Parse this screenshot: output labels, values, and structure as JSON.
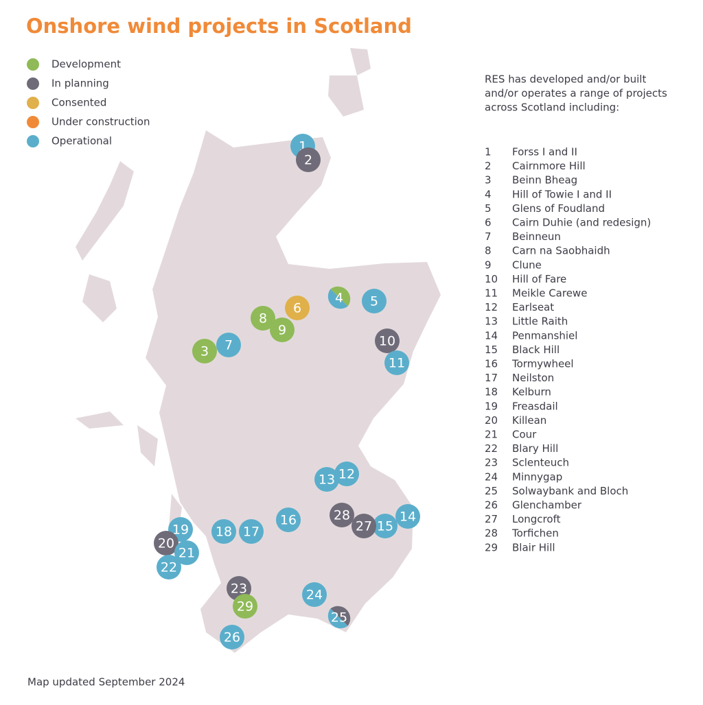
{
  "title": "Onshore wind projects in Scotland",
  "legend": [
    {
      "label": "Development",
      "color": "#8fba57"
    },
    {
      "label": "In planning",
      "color": "#6f6b78"
    },
    {
      "label": "Consented",
      "color": "#e0b04a"
    },
    {
      "label": "Under construction",
      "color": "#f08a38"
    },
    {
      "label": "Operational",
      "color": "#5aaecb"
    }
  ],
  "intro": [
    "RES has developed and/or built",
    "and/or operates a range of projects",
    "across Scotland including:"
  ],
  "projects": [
    {
      "number": "1",
      "name": "Forss I and II",
      "status": [
        "Operational"
      ]
    },
    {
      "number": "2",
      "name": "Cairnmore Hill",
      "status": [
        "In planning"
      ]
    },
    {
      "number": "3",
      "name": "Beinn Bheag",
      "status": [
        "Development"
      ]
    },
    {
      "number": "4",
      "name": "Hill of Towie I and II",
      "status": [
        "Operational",
        "Development"
      ]
    },
    {
      "number": "5",
      "name": "Glens of Foudland",
      "status": [
        "Operational"
      ]
    },
    {
      "number": "6",
      "name": "Cairn Duhie (and redesign)",
      "status": [
        "Consented"
      ]
    },
    {
      "number": "7",
      "name": "Beinneun",
      "status": [
        "Operational"
      ]
    },
    {
      "number": "8",
      "name": "Carn na Saobhaidh",
      "status": [
        "Development"
      ]
    },
    {
      "number": "9",
      "name": "Clune",
      "status": [
        "Development"
      ]
    },
    {
      "number": "10",
      "name": "Hill of Fare",
      "status": [
        "In planning"
      ]
    },
    {
      "number": "11",
      "name": "Meikle Carewe",
      "status": [
        "Operational"
      ]
    },
    {
      "number": "12",
      "name": "Earlseat",
      "status": [
        "Operational"
      ]
    },
    {
      "number": "13",
      "name": "Little Raith",
      "status": [
        "Operational"
      ]
    },
    {
      "number": "14",
      "name": "Penmanshiel",
      "status": [
        "Operational"
      ]
    },
    {
      "number": "15",
      "name": "Black Hill",
      "status": [
        "Operational"
      ]
    },
    {
      "number": "16",
      "name": "Tormywheel",
      "status": [
        "Operational"
      ]
    },
    {
      "number": "17",
      "name": "Neilston",
      "status": [
        "Operational"
      ]
    },
    {
      "number": "18",
      "name": "Kelburn",
      "status": [
        "Operational"
      ]
    },
    {
      "number": "19",
      "name": "Freasdail",
      "status": [
        "Operational"
      ]
    },
    {
      "number": "20",
      "name": "Killean",
      "status": [
        "In planning"
      ]
    },
    {
      "number": "21",
      "name": "Cour",
      "status": [
        "Operational"
      ]
    },
    {
      "number": "22",
      "name": "Blary Hill",
      "status": [
        "Operational"
      ]
    },
    {
      "number": "23",
      "name": "Sclenteuch",
      "status": [
        "In planning"
      ]
    },
    {
      "number": "24",
      "name": "Minnygap",
      "status": [
        "Operational"
      ]
    },
    {
      "number": "25",
      "name": "Solwaybank and Bloch",
      "status": [
        "Operational",
        "In planning"
      ]
    },
    {
      "number": "26",
      "name": "Glenchamber",
      "status": [
        "Operational"
      ]
    },
    {
      "number": "27",
      "name": "Longcroft",
      "status": [
        "In planning"
      ]
    },
    {
      "number": "28",
      "name": "Torfichen",
      "status": [
        "In planning"
      ]
    },
    {
      "number": "29",
      "name": "Blair Hill",
      "status": [
        "Development"
      ]
    }
  ],
  "footer": "Map updated September 2024"
}
